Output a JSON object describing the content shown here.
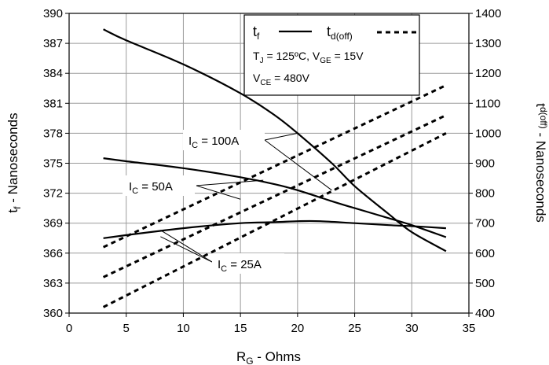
{
  "chart_data": {
    "type": "line",
    "xlabel": {
      "main": "R",
      "sub": "G",
      "rest": " - Ohms"
    },
    "ylabel_left": {
      "main": "t",
      "sub": "f",
      "rest": " - Nanoseconds"
    },
    "ylabel_right": {
      "main": "t",
      "sub": "d(off)",
      "rest": " - Nanoseconds"
    },
    "xlim": [
      0,
      35
    ],
    "ylim_left": [
      360,
      390
    ],
    "ylim_right": [
      400,
      1400
    ],
    "x_ticks": [
      "0",
      "5",
      "10",
      "15",
      "20",
      "25",
      "30",
      "35"
    ],
    "y_left_ticks": [
      "360",
      "363",
      "366",
      "369",
      "372",
      "375",
      "378",
      "381",
      "384",
      "387",
      "390"
    ],
    "y_right_ticks": [
      "400",
      "500",
      "600",
      "700",
      "800",
      "900",
      "1000",
      "1100",
      "1200",
      "1300",
      "1400"
    ],
    "grid": true,
    "legend": {
      "position": "top-right",
      "tf_main": "t",
      "tf_sub": "f",
      "td_main": "t",
      "td_sub": "d(off)",
      "cond1": {
        "tj_main": "T",
        "tj_sub": "J",
        "tj_rest": " = 125ºC,  ",
        "vge_main": "V",
        "vge_sub": "GE",
        "vge_rest": " = 15V"
      },
      "cond2": {
        "vce_main": "V",
        "vce_sub": "CE",
        "vce_rest": " = 480V"
      }
    },
    "annotations": {
      "ic100": {
        "main": "I",
        "sub": "C",
        "rest": " = 100A"
      },
      "ic50": {
        "main": "I",
        "sub": "C",
        "rest": " = 50A"
      },
      "ic25": {
        "main": "I",
        "sub": "C",
        "rest": " = 25A"
      }
    },
    "series": [
      {
        "id": "tf_100",
        "style": "solid",
        "axis": "left",
        "points": [
          [
            3,
            388.4
          ],
          [
            5,
            387.3
          ],
          [
            10,
            384.9
          ],
          [
            15,
            382.0
          ],
          [
            18,
            379.8
          ],
          [
            20,
            378.0
          ],
          [
            23,
            375.0
          ],
          [
            25,
            372.7
          ],
          [
            28,
            369.9
          ],
          [
            30,
            368.1
          ],
          [
            33,
            366.2
          ]
        ]
      },
      {
        "id": "tf_50",
        "style": "solid",
        "axis": "left",
        "points": [
          [
            3,
            375.5
          ],
          [
            5,
            375.2
          ],
          [
            10,
            374.5
          ],
          [
            15,
            373.6
          ],
          [
            18,
            372.9
          ],
          [
            20,
            372.3
          ],
          [
            23,
            371.2
          ],
          [
            25,
            370.5
          ],
          [
            28,
            369.5
          ],
          [
            30,
            368.8
          ],
          [
            33,
            367.6
          ]
        ]
      },
      {
        "id": "tf_25",
        "style": "solid",
        "axis": "left",
        "points": [
          [
            3,
            367.5
          ],
          [
            5,
            367.8
          ],
          [
            10,
            368.5
          ],
          [
            15,
            369.0
          ],
          [
            18,
            369.1
          ],
          [
            20,
            369.2
          ],
          [
            22,
            369.2
          ],
          [
            25,
            369.0
          ],
          [
            28,
            368.8
          ],
          [
            30,
            368.7
          ],
          [
            33,
            368.5
          ]
        ]
      },
      {
        "id": "td_100",
        "style": "dashed",
        "axis": "right",
        "points": [
          [
            3,
            620
          ],
          [
            33,
            1160
          ]
        ]
      },
      {
        "id": "td_50",
        "style": "dashed",
        "axis": "right",
        "points": [
          [
            3,
            520
          ],
          [
            33,
            1060
          ]
        ]
      },
      {
        "id": "td_25",
        "style": "dashed",
        "axis": "right",
        "points": [
          [
            3,
            420
          ],
          [
            33,
            1000
          ]
        ]
      }
    ]
  }
}
